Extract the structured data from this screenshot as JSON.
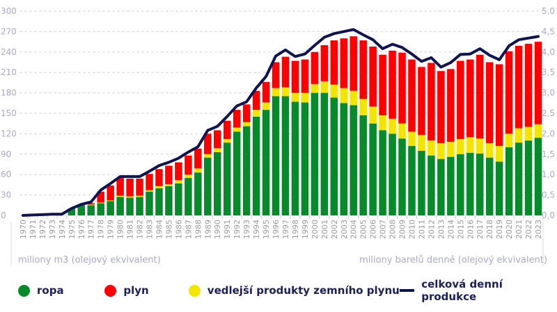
{
  "chart_data": {
    "type": "bar",
    "stacked": true,
    "categories": [
      "1970",
      "1971",
      "1972",
      "1973",
      "1974",
      "1975",
      "1976",
      "1977",
      "1978",
      "1979",
      "1980",
      "1981",
      "1982",
      "1983",
      "1984",
      "1985",
      "1986",
      "1987",
      "1988",
      "1989",
      "1990",
      "1991",
      "1992",
      "1993",
      "1994",
      "1995",
      "1996",
      "1997",
      "1998",
      "1999",
      "2000",
      "2001",
      "2002",
      "2003",
      "2004",
      "2005",
      "2006",
      "2007",
      "2008",
      "2009",
      "2010",
      "2011",
      "2012",
      "2013",
      "2014",
      "2015",
      "2016",
      "2017",
      "2018",
      "2019",
      "2020",
      "2021",
      "2022",
      "2023"
    ],
    "series": [
      {
        "name": "ropa",
        "color": "#078a2a",
        "axis": "left",
        "values": [
          0,
          0,
          0,
          0,
          0,
          10,
          15,
          15,
          18,
          21,
          27,
          26,
          27,
          35,
          40,
          43,
          47,
          55,
          63,
          85,
          93,
          107,
          123,
          131,
          145,
          155,
          175,
          175,
          167,
          166,
          180,
          180,
          173,
          165,
          162,
          147,
          135,
          125,
          120,
          113,
          102,
          95,
          88,
          83,
          86,
          90,
          92,
          91,
          85,
          79,
          100,
          107,
          110,
          114
        ]
      },
      {
        "name": "vedlejší produkty zemního plynu",
        "color": "#f2e600",
        "axis": "left",
        "values": [
          0,
          0,
          0,
          0,
          0,
          0,
          0,
          1,
          1,
          1,
          2,
          2,
          2,
          2,
          3,
          3,
          5,
          5,
          6,
          5,
          6,
          5,
          6,
          6,
          10,
          11,
          12,
          13,
          13,
          14,
          13,
          17,
          19,
          22,
          21,
          24,
          25,
          22,
          22,
          22,
          21,
          23,
          22,
          23,
          22,
          22,
          23,
          22,
          21,
          23,
          20,
          21,
          20,
          20
        ]
      },
      {
        "name": "plyn",
        "color": "#ff0000",
        "axis": "left",
        "values": [
          0,
          0,
          0,
          0,
          0,
          0,
          0,
          2,
          16,
          22,
          26,
          26,
          25,
          24,
          25,
          27,
          26,
          28,
          29,
          30,
          26,
          27,
          26,
          26,
          28,
          30,
          38,
          45,
          47,
          49,
          47,
          53,
          65,
          73,
          80,
          86,
          88,
          89,
          100,
          104,
          106,
          100,
          114,
          106,
          107,
          115,
          114,
          123,
          119,
          120,
          121,
          121,
          122,
          121
        ]
      },
      {
        "name": "celková denní produkce",
        "type": "line",
        "color": "#0d1450",
        "axis": "right",
        "values": [
          0,
          0.01,
          0.02,
          0.03,
          0.03,
          0.17,
          0.27,
          0.33,
          0.62,
          0.78,
          0.95,
          0.95,
          0.95,
          1.08,
          1.22,
          1.3,
          1.4,
          1.55,
          1.68,
          2.08,
          2.18,
          2.42,
          2.68,
          2.78,
          3.12,
          3.4,
          3.9,
          4.05,
          3.89,
          3.95,
          4.16,
          4.36,
          4.45,
          4.5,
          4.55,
          4.42,
          4.3,
          4.08,
          4.19,
          4.11,
          3.95,
          3.77,
          3.86,
          3.63,
          3.74,
          3.94,
          3.95,
          4.08,
          3.92,
          3.81,
          4.15,
          4.3,
          4.34,
          4.38
        ]
      }
    ],
    "y_left": {
      "label": "miliony m3 (olejový ekvivalent)",
      "range": [
        0,
        300
      ],
      "ticks": [
        "0",
        "30",
        "60",
        "90",
        "120",
        "150",
        "180",
        "210",
        "240",
        "270",
        "300"
      ]
    },
    "y_right": {
      "label": "miliony barelů denně (olejový ekvivalent)",
      "range": [
        0,
        5
      ],
      "ticks": [
        "0,0",
        "0,5",
        "1,0",
        "1,5",
        "2,0",
        "2,5",
        "3,0",
        "3,5",
        "4,0",
        "4,5",
        "5,0"
      ]
    },
    "grid": true,
    "legend_placement": "bottom"
  },
  "legend": [
    {
      "label": "ropa",
      "color": "#078a2a",
      "kind": "dot"
    },
    {
      "label": "plyn",
      "color": "#ff0000",
      "kind": "dot"
    },
    {
      "label": "vedlejší produkty zemního plynu",
      "color": "#f2e600",
      "kind": "dot"
    },
    {
      "label": "celková denní produkce",
      "color": "#0d1450",
      "kind": "line"
    }
  ]
}
